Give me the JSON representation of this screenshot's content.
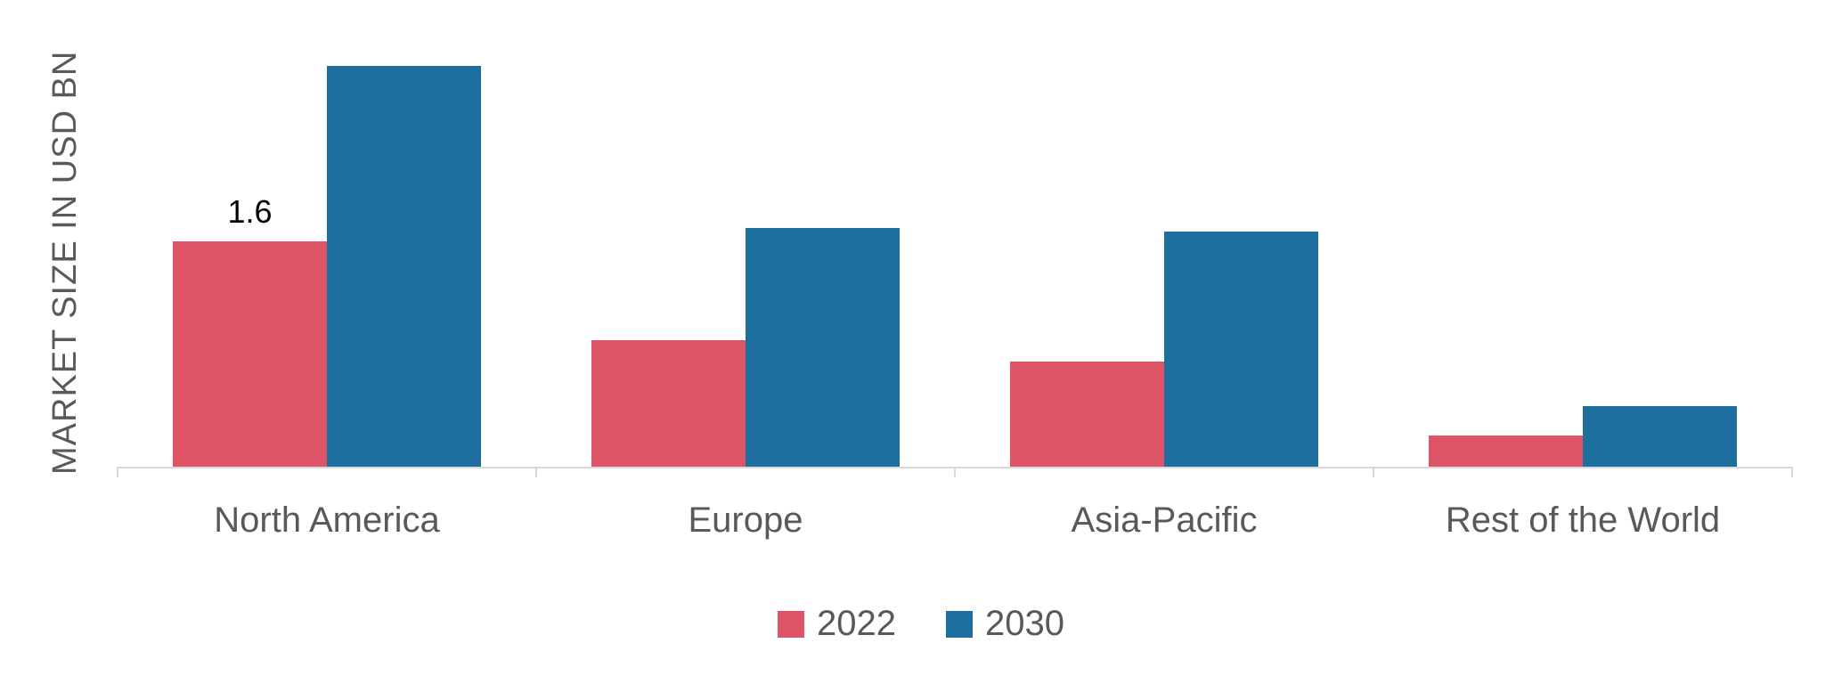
{
  "chart_data": {
    "type": "bar",
    "title": "",
    "xlabel": "",
    "ylabel": "MARKET SIZE IN USD BN",
    "categories": [
      "North America",
      "Europe",
      "Asia-Pacific",
      "Rest of the World"
    ],
    "series": [
      {
        "name": "2022",
        "color": "#dd5467",
        "values": [
          1.6,
          0.9,
          0.75,
          0.22
        ],
        "labels": [
          "1.6",
          null,
          null,
          null
        ]
      },
      {
        "name": "2030",
        "color": "#1f6f9e",
        "values": [
          2.85,
          1.7,
          1.67,
          0.43
        ],
        "labels": [
          null,
          null,
          null,
          null
        ]
      }
    ],
    "ylim": [
      0,
      2.9
    ],
    "grid": false,
    "legend_position": "bottom"
  },
  "colors": {
    "series_2022": "#dd5467",
    "series_2030": "#1f6f9e",
    "axis_line": "#d9d9d9",
    "label_text": "#595959",
    "data_label_text": "#000000"
  }
}
